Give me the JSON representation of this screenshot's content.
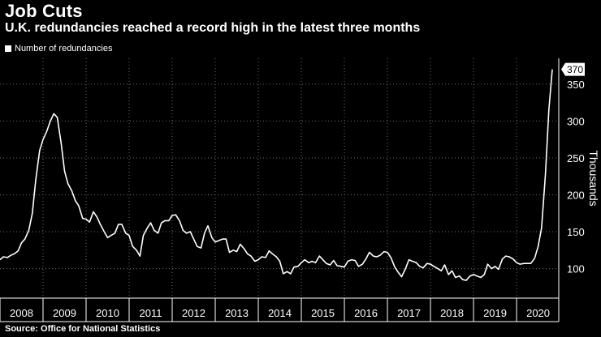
{
  "header": {
    "title": "Job Cuts",
    "subtitle": "U.K. redundancies reached a record high in the latest three months"
  },
  "footer": {
    "source": "Source: Office for National Statistics"
  },
  "colors": {
    "background": "#000000",
    "line": "#ffffff",
    "grid": "#6e6e6e"
  },
  "chart_data": {
    "type": "line",
    "ylabel": "Thousands",
    "xlabel": "",
    "ylim": [
      60,
      385
    ],
    "yticks": [
      100,
      150,
      200,
      250,
      300,
      350
    ],
    "xlim": [
      2008.0,
      2020.98
    ],
    "year_labels": [
      "2008",
      "2009",
      "2010",
      "2011",
      "2012",
      "2013",
      "2014",
      "2015",
      "2016",
      "2017",
      "2018",
      "2019",
      "2020"
    ],
    "grid": true,
    "legend_position": "top-left",
    "latest_label": "370",
    "series": [
      {
        "name": "Number of redundancies",
        "points": [
          [
            2008.0,
            112
          ],
          [
            2008.08,
            116
          ],
          [
            2008.17,
            115
          ],
          [
            2008.25,
            118
          ],
          [
            2008.33,
            120
          ],
          [
            2008.42,
            124
          ],
          [
            2008.5,
            135
          ],
          [
            2008.58,
            140
          ],
          [
            2008.67,
            152
          ],
          [
            2008.75,
            175
          ],
          [
            2008.83,
            220
          ],
          [
            2008.92,
            260
          ],
          [
            2009.0,
            275
          ],
          [
            2009.08,
            285
          ],
          [
            2009.17,
            300
          ],
          [
            2009.25,
            310
          ],
          [
            2009.33,
            305
          ],
          [
            2009.42,
            270
          ],
          [
            2009.5,
            232
          ],
          [
            2009.58,
            215
          ],
          [
            2009.67,
            205
          ],
          [
            2009.75,
            192
          ],
          [
            2009.83,
            185
          ],
          [
            2009.92,
            168
          ],
          [
            2010.0,
            167
          ],
          [
            2010.08,
            163
          ],
          [
            2010.17,
            177
          ],
          [
            2010.25,
            170
          ],
          [
            2010.33,
            160
          ],
          [
            2010.42,
            150
          ],
          [
            2010.5,
            142
          ],
          [
            2010.58,
            145
          ],
          [
            2010.67,
            148
          ],
          [
            2010.75,
            160
          ],
          [
            2010.83,
            160
          ],
          [
            2010.92,
            148
          ],
          [
            2011.0,
            145
          ],
          [
            2011.08,
            130
          ],
          [
            2011.17,
            125
          ],
          [
            2011.25,
            117
          ],
          [
            2011.33,
            145
          ],
          [
            2011.42,
            155
          ],
          [
            2011.5,
            162
          ],
          [
            2011.58,
            152
          ],
          [
            2011.67,
            148
          ],
          [
            2011.75,
            162
          ],
          [
            2011.83,
            165
          ],
          [
            2011.92,
            165
          ],
          [
            2012.0,
            172
          ],
          [
            2012.08,
            173
          ],
          [
            2012.17,
            165
          ],
          [
            2012.25,
            152
          ],
          [
            2012.33,
            148
          ],
          [
            2012.42,
            150
          ],
          [
            2012.5,
            140
          ],
          [
            2012.58,
            130
          ],
          [
            2012.67,
            128
          ],
          [
            2012.75,
            148
          ],
          [
            2012.83,
            158
          ],
          [
            2012.92,
            142
          ],
          [
            2013.0,
            136
          ],
          [
            2013.08,
            138
          ],
          [
            2013.17,
            140
          ],
          [
            2013.25,
            140
          ],
          [
            2013.33,
            122
          ],
          [
            2013.42,
            125
          ],
          [
            2013.5,
            123
          ],
          [
            2013.58,
            133
          ],
          [
            2013.67,
            127
          ],
          [
            2013.75,
            120
          ],
          [
            2013.83,
            117
          ],
          [
            2013.92,
            110
          ],
          [
            2014.0,
            112
          ],
          [
            2014.08,
            116
          ],
          [
            2014.17,
            115
          ],
          [
            2014.25,
            124
          ],
          [
            2014.33,
            120
          ],
          [
            2014.42,
            116
          ],
          [
            2014.5,
            110
          ],
          [
            2014.58,
            93
          ],
          [
            2014.67,
            96
          ],
          [
            2014.75,
            93
          ],
          [
            2014.83,
            102
          ],
          [
            2014.92,
            103
          ],
          [
            2015.0,
            108
          ],
          [
            2015.08,
            112
          ],
          [
            2015.17,
            108
          ],
          [
            2015.25,
            110
          ],
          [
            2015.33,
            108
          ],
          [
            2015.42,
            117
          ],
          [
            2015.5,
            112
          ],
          [
            2015.58,
            107
          ],
          [
            2015.67,
            105
          ],
          [
            2015.75,
            111
          ],
          [
            2015.83,
            104
          ],
          [
            2015.92,
            103
          ],
          [
            2016.0,
            102
          ],
          [
            2016.08,
            110
          ],
          [
            2016.17,
            112
          ],
          [
            2016.25,
            111
          ],
          [
            2016.33,
            103
          ],
          [
            2016.42,
            106
          ],
          [
            2016.5,
            113
          ],
          [
            2016.58,
            122
          ],
          [
            2016.67,
            117
          ],
          [
            2016.75,
            116
          ],
          [
            2016.83,
            118
          ],
          [
            2016.92,
            123
          ],
          [
            2017.0,
            122
          ],
          [
            2017.08,
            115
          ],
          [
            2017.17,
            102
          ],
          [
            2017.25,
            95
          ],
          [
            2017.33,
            89
          ],
          [
            2017.42,
            100
          ],
          [
            2017.5,
            112
          ],
          [
            2017.58,
            110
          ],
          [
            2017.67,
            108
          ],
          [
            2017.75,
            103
          ],
          [
            2017.83,
            101
          ],
          [
            2017.92,
            107
          ],
          [
            2018.0,
            106
          ],
          [
            2018.08,
            103
          ],
          [
            2018.17,
            100
          ],
          [
            2018.25,
            97
          ],
          [
            2018.33,
            105
          ],
          [
            2018.42,
            92
          ],
          [
            2018.5,
            97
          ],
          [
            2018.58,
            88
          ],
          [
            2018.67,
            90
          ],
          [
            2018.75,
            85
          ],
          [
            2018.83,
            84
          ],
          [
            2018.92,
            90
          ],
          [
            2019.0,
            92
          ],
          [
            2019.08,
            90
          ],
          [
            2019.17,
            88
          ],
          [
            2019.25,
            92
          ],
          [
            2019.33,
            106
          ],
          [
            2019.42,
            100
          ],
          [
            2019.5,
            103
          ],
          [
            2019.58,
            99
          ],
          [
            2019.67,
            113
          ],
          [
            2019.75,
            117
          ],
          [
            2019.83,
            116
          ],
          [
            2019.92,
            113
          ],
          [
            2020.0,
            108
          ],
          [
            2020.08,
            106
          ],
          [
            2020.17,
            107
          ],
          [
            2020.25,
            107
          ],
          [
            2020.33,
            107
          ],
          [
            2020.42,
            114
          ],
          [
            2020.5,
            130
          ],
          [
            2020.58,
            155
          ],
          [
            2020.67,
            228
          ],
          [
            2020.75,
            315
          ],
          [
            2020.83,
            370
          ]
        ]
      }
    ]
  }
}
